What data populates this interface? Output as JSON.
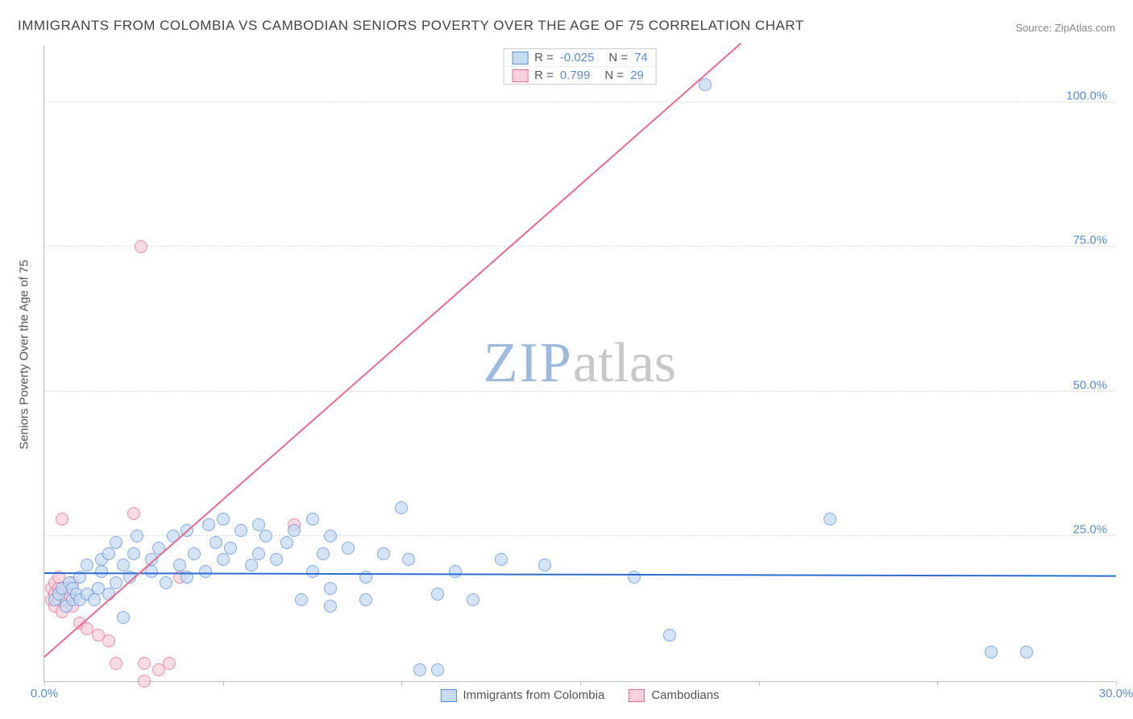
{
  "title": "IMMIGRANTS FROM COLOMBIA VS CAMBODIAN SENIORS POVERTY OVER THE AGE OF 75 CORRELATION CHART",
  "source_prefix": "Source: ",
  "source_name": "ZipAtlas.com",
  "watermark": {
    "part1": "ZIP",
    "part2": "atlas",
    "color1": "#9eb9e0",
    "color2": "#c8c8c8"
  },
  "chart": {
    "type": "scatter",
    "xlim": [
      0,
      30
    ],
    "ylim": [
      0,
      110
    ],
    "background_color": "#ffffff",
    "grid_color": "#dddddd",
    "axis_color": "#bbbbbb",
    "ylabel": "Seniors Poverty Over the Age of 75",
    "yticks": [
      {
        "v": 25,
        "label": "25.0%"
      },
      {
        "v": 50,
        "label": "50.0%"
      },
      {
        "v": 75,
        "label": "75.0%"
      },
      {
        "v": 100,
        "label": "100.0%"
      }
    ],
    "xticks": [
      {
        "v": 0,
        "label": "0.0%"
      },
      {
        "v": 5,
        "label": ""
      },
      {
        "v": 10,
        "label": ""
      },
      {
        "v": 15,
        "label": ""
      },
      {
        "v": 20,
        "label": ""
      },
      {
        "v": 25,
        "label": ""
      },
      {
        "v": 30,
        "label": "30.0%"
      }
    ],
    "tick_color_x": "#5b8dd6",
    "tick_color_y": "#5b8dd6",
    "ylabel_color": "#555555",
    "point_radius": 8,
    "point_border_width": 1.5,
    "series": [
      {
        "name": "Immigrants from Colombia",
        "fill": "#c6dbf4",
        "stroke": "#5b8dd6",
        "fill_opacity": 0.75,
        "R": "-0.025",
        "N": "74",
        "trend": {
          "x1": 0,
          "y1": 18.5,
          "x2": 30,
          "y2": 18.0,
          "color": "#2e6cd1",
          "width": 2
        },
        "points": [
          [
            0.3,
            14
          ],
          [
            0.4,
            15
          ],
          [
            0.5,
            16
          ],
          [
            0.6,
            13
          ],
          [
            0.7,
            17
          ],
          [
            0.8,
            14
          ],
          [
            0.8,
            16
          ],
          [
            0.9,
            15
          ],
          [
            1.0,
            14
          ],
          [
            1.0,
            18
          ],
          [
            1.2,
            15
          ],
          [
            1.2,
            20
          ],
          [
            1.4,
            14
          ],
          [
            1.5,
            16
          ],
          [
            1.6,
            19
          ],
          [
            1.6,
            21
          ],
          [
            1.8,
            15
          ],
          [
            1.8,
            22
          ],
          [
            2.0,
            17
          ],
          [
            2.0,
            24
          ],
          [
            2.2,
            20
          ],
          [
            2.4,
            18
          ],
          [
            2.5,
            22
          ],
          [
            2.6,
            25
          ],
          [
            3.0,
            19
          ],
          [
            3.0,
            21
          ],
          [
            3.2,
            23
          ],
          [
            3.4,
            17
          ],
          [
            3.6,
            25
          ],
          [
            3.8,
            20
          ],
          [
            4.0,
            18
          ],
          [
            4.0,
            26
          ],
          [
            4.2,
            22
          ],
          [
            4.5,
            19
          ],
          [
            4.6,
            27
          ],
          [
            4.8,
            24
          ],
          [
            5.0,
            21
          ],
          [
            5.0,
            28
          ],
          [
            5.2,
            23
          ],
          [
            5.5,
            26
          ],
          [
            5.8,
            20
          ],
          [
            6.0,
            22
          ],
          [
            6.0,
            27
          ],
          [
            6.2,
            25
          ],
          [
            6.5,
            21
          ],
          [
            6.8,
            24
          ],
          [
            7.0,
            26
          ],
          [
            7.2,
            14
          ],
          [
            7.5,
            19
          ],
          [
            7.5,
            28
          ],
          [
            7.8,
            22
          ],
          [
            8.0,
            16
          ],
          [
            8.0,
            25
          ],
          [
            8.0,
            13
          ],
          [
            8.5,
            23
          ],
          [
            9.0,
            18
          ],
          [
            9.0,
            14
          ],
          [
            9.5,
            22
          ],
          [
            10.0,
            30
          ],
          [
            10.2,
            21
          ],
          [
            10.5,
            2
          ],
          [
            11.0,
            15
          ],
          [
            11.0,
            2
          ],
          [
            11.5,
            19
          ],
          [
            12.0,
            14
          ],
          [
            12.8,
            21
          ],
          [
            14.0,
            20
          ],
          [
            16.5,
            18
          ],
          [
            17.5,
            8
          ],
          [
            22.0,
            28
          ],
          [
            26.5,
            5
          ],
          [
            27.5,
            5
          ],
          [
            18.5,
            103
          ],
          [
            2.2,
            11
          ]
        ]
      },
      {
        "name": "Cambodians",
        "fill": "#f6d1db",
        "stroke": "#e86a92",
        "fill_opacity": 0.75,
        "R": "0.799",
        "N": "29",
        "trend": {
          "x1": 0,
          "y1": 4,
          "x2": 19.5,
          "y2": 110,
          "color": "#e86a92",
          "width": 2
        },
        "points": [
          [
            0.2,
            14
          ],
          [
            0.2,
            16
          ],
          [
            0.3,
            13
          ],
          [
            0.3,
            15
          ],
          [
            0.3,
            17
          ],
          [
            0.4,
            14
          ],
          [
            0.4,
            16
          ],
          [
            0.4,
            18
          ],
          [
            0.5,
            15
          ],
          [
            0.5,
            12
          ],
          [
            0.5,
            28
          ],
          [
            0.6,
            14
          ],
          [
            0.6,
            16
          ],
          [
            0.7,
            15
          ],
          [
            0.8,
            13
          ],
          [
            0.8,
            17
          ],
          [
            1.0,
            10
          ],
          [
            1.2,
            9
          ],
          [
            1.5,
            8
          ],
          [
            1.8,
            7
          ],
          [
            2.0,
            3
          ],
          [
            2.5,
            29
          ],
          [
            2.8,
            3
          ],
          [
            2.8,
            0
          ],
          [
            3.2,
            2
          ],
          [
            3.5,
            3
          ],
          [
            3.8,
            18
          ],
          [
            7.0,
            27
          ],
          [
            2.7,
            75
          ]
        ]
      }
    ],
    "legend_top": {
      "border_color": "#cccccc",
      "text_color": "#555555",
      "value_color": "#5b8dd6"
    },
    "legend_bottom": {
      "text_color": "#555555"
    }
  }
}
